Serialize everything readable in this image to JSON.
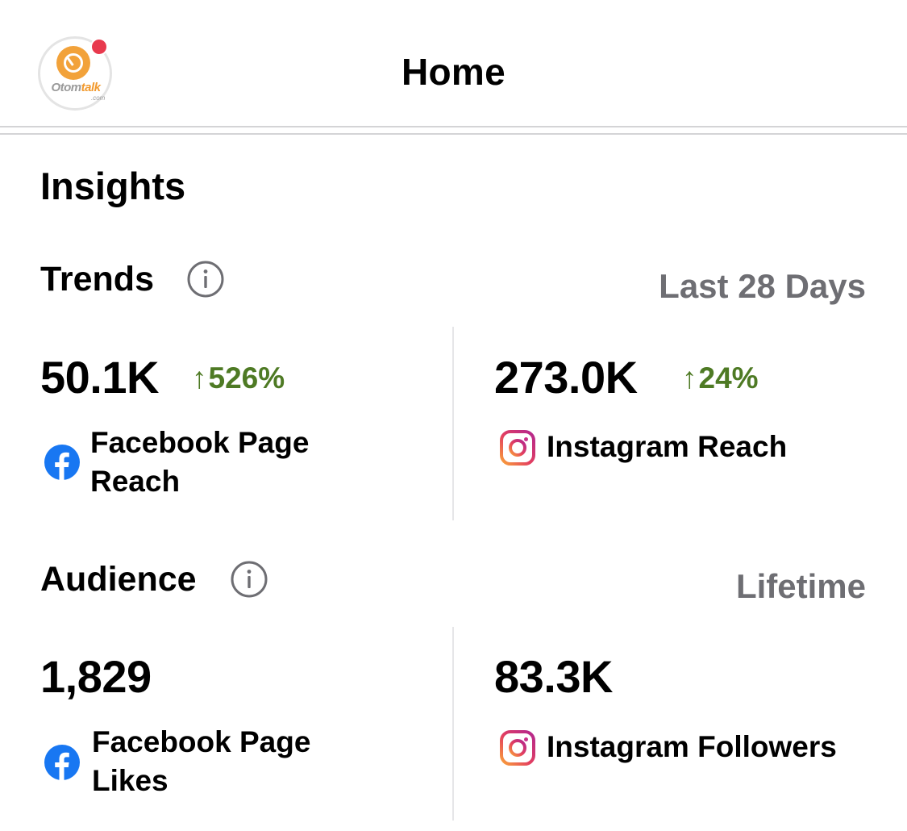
{
  "header": {
    "title": "Home",
    "avatar": {
      "brand_text_a": "Otom",
      "brand_text_b": "talk",
      "brand_sub": ".com",
      "notification_dot_color": "#e8394d"
    }
  },
  "insights": {
    "title": "Insights",
    "trends": {
      "title": "Trends",
      "period": "Last 28 Days",
      "metrics": [
        {
          "value": "50.1K",
          "change": "526%",
          "label_line1": "Facebook Page",
          "label_line2": "Reach",
          "platform_icon": "facebook-icon"
        },
        {
          "value": "273.0K",
          "change": "24%",
          "label_line1": "Instagram Reach",
          "label_line2": "",
          "platform_icon": "instagram-icon"
        }
      ]
    },
    "audience": {
      "title": "Audience",
      "period": "Lifetime",
      "metrics": [
        {
          "value": "1,829",
          "label_line1": "Facebook Page",
          "label_line2": "Likes",
          "platform_icon": "facebook-icon"
        },
        {
          "value": "83.3K",
          "label_line1": "Instagram Followers",
          "label_line2": "",
          "platform_icon": "instagram-icon"
        }
      ]
    }
  },
  "colors": {
    "positive_change": "#4e7a24",
    "period_text": "#6e6e73",
    "facebook_blue": "#1877f2"
  },
  "icons": {
    "change_arrow": "↑"
  }
}
